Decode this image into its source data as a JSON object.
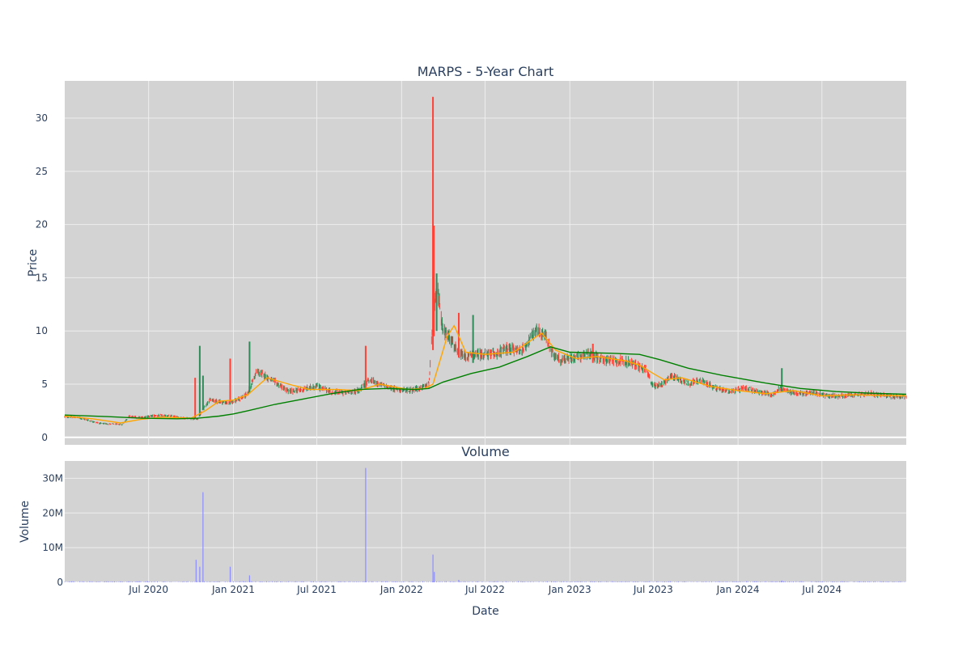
{
  "chart_data": [
    {
      "type": "candlestick",
      "title": "MARPS - 5-Year Chart",
      "ylabel": "Price",
      "ylim": [
        -0.7,
        33.5
      ],
      "yticks": [
        0,
        5,
        10,
        15,
        20,
        25,
        30
      ],
      "x_range": [
        "2020-01-01",
        "2024-12-31"
      ],
      "grid": true,
      "colors": {
        "increasing": "#2e8b57",
        "decreasing": "#ff4136",
        "ma_short": "#ffa500",
        "ma_long": "#008000",
        "plot_bg": "#d3d3d3",
        "grid": "#eeeeee"
      },
      "price_path": [
        [
          "2020-01-01",
          1.95
        ],
        [
          "2020-02-01",
          1.85
        ],
        [
          "2020-03-01",
          1.5
        ],
        [
          "2020-03-20",
          1.3
        ],
        [
          "2020-04-15",
          1.25
        ],
        [
          "2020-05-05",
          1.2
        ],
        [
          "2020-05-20",
          2.0
        ],
        [
          "2020-06-10",
          1.85
        ],
        [
          "2020-07-15",
          2.05
        ],
        [
          "2020-08-15",
          2.0
        ],
        [
          "2020-09-20",
          1.8
        ],
        [
          "2020-10-15",
          1.7
        ],
        [
          "2020-10-25",
          2.5
        ],
        [
          "2020-11-10",
          3.5
        ],
        [
          "2020-12-01",
          3.4
        ],
        [
          "2020-12-20",
          3.2
        ],
        [
          "2021-01-15",
          3.6
        ],
        [
          "2021-02-01",
          4.1
        ],
        [
          "2021-02-20",
          6.2
        ],
        [
          "2021-03-10",
          5.8
        ],
        [
          "2021-04-01",
          5.2
        ],
        [
          "2021-05-01",
          4.3
        ],
        [
          "2021-06-01",
          4.5
        ],
        [
          "2021-07-01",
          4.8
        ],
        [
          "2021-08-01",
          4.3
        ],
        [
          "2021-09-01",
          4.2
        ],
        [
          "2021-10-01",
          4.4
        ],
        [
          "2021-10-20",
          5.4
        ],
        [
          "2021-11-15",
          5.0
        ],
        [
          "2021-12-10",
          4.6
        ],
        [
          "2022-01-10",
          4.4
        ],
        [
          "2022-02-10",
          4.6
        ],
        [
          "2022-03-01",
          5.0
        ],
        [
          "2022-03-12",
          12.0
        ],
        [
          "2022-03-20",
          14.0
        ],
        [
          "2022-04-01",
          10.0
        ],
        [
          "2022-04-15",
          9.5
        ],
        [
          "2022-05-01",
          8.0
        ],
        [
          "2022-05-20",
          7.5
        ],
        [
          "2022-06-10",
          7.8
        ],
        [
          "2022-07-15",
          7.8
        ],
        [
          "2022-08-20",
          8.3
        ],
        [
          "2022-09-20",
          8.2
        ],
        [
          "2022-10-20",
          10.0
        ],
        [
          "2022-11-10",
          9.5
        ],
        [
          "2022-11-25",
          7.8
        ],
        [
          "2022-12-15",
          7.2
        ],
        [
          "2023-01-15",
          7.6
        ],
        [
          "2023-02-15",
          7.8
        ],
        [
          "2023-03-15",
          7.3
        ],
        [
          "2023-04-15",
          7.2
        ],
        [
          "2023-05-15",
          7.0
        ],
        [
          "2023-06-15",
          6.4
        ],
        [
          "2023-07-01",
          4.8
        ],
        [
          "2023-07-20",
          5.0
        ],
        [
          "2023-08-10",
          5.8
        ],
        [
          "2023-09-15",
          5.1
        ],
        [
          "2023-10-15",
          5.3
        ],
        [
          "2023-11-15",
          4.6
        ],
        [
          "2023-12-15",
          4.3
        ],
        [
          "2024-01-15",
          4.6
        ],
        [
          "2024-02-15",
          4.3
        ],
        [
          "2024-03-15",
          4.0
        ],
        [
          "2024-04-01",
          4.6
        ],
        [
          "2024-04-20",
          4.3
        ],
        [
          "2024-05-15",
          4.1
        ],
        [
          "2024-06-15",
          4.2
        ],
        [
          "2024-07-15",
          3.9
        ],
        [
          "2024-08-15",
          3.9
        ],
        [
          "2024-09-15",
          4.0
        ],
        [
          "2024-10-15",
          4.1
        ],
        [
          "2024-11-15",
          3.95
        ],
        [
          "2024-12-31",
          3.8
        ]
      ],
      "spikes": [
        {
          "date": "2020-10-20",
          "low": 2.0,
          "high": 8.6
        },
        {
          "date": "2020-10-10",
          "low": 1.8,
          "high": 5.6
        },
        {
          "date": "2020-10-27",
          "low": 2.6,
          "high": 5.8
        },
        {
          "date": "2020-12-25",
          "low": 3.3,
          "high": 7.4
        },
        {
          "date": "2021-02-05",
          "low": 4.2,
          "high": 9.0
        },
        {
          "date": "2021-10-15",
          "low": 4.5,
          "high": 8.6
        },
        {
          "date": "2022-03-10",
          "low": 8.2,
          "high": 32.0
        },
        {
          "date": "2022-03-12",
          "low": 9.5,
          "high": 19.9
        },
        {
          "date": "2022-03-18",
          "low": 10.0,
          "high": 15.4
        },
        {
          "date": "2022-05-05",
          "low": 7.5,
          "high": 11.7
        },
        {
          "date": "2022-06-05",
          "low": 7.0,
          "high": 11.5
        },
        {
          "date": "2023-02-20",
          "low": 7.0,
          "high": 8.8
        },
        {
          "date": "2024-04-05",
          "low": 4.3,
          "high": 6.5
        }
      ],
      "ma_short": [
        [
          "2020-01-01",
          2.0
        ],
        [
          "2020-03-01",
          1.75
        ],
        [
          "2020-05-01",
          1.35
        ],
        [
          "2020-06-15",
          1.7
        ],
        [
          "2020-08-01",
          1.9
        ],
        [
          "2020-10-01",
          1.8
        ],
        [
          "2020-11-01",
          2.5
        ],
        [
          "2020-12-01",
          3.4
        ],
        [
          "2021-01-01",
          3.5
        ],
        [
          "2021-02-01",
          4.0
        ],
        [
          "2021-03-15",
          5.6
        ],
        [
          "2021-05-01",
          5.0
        ],
        [
          "2021-06-15",
          4.5
        ],
        [
          "2021-08-15",
          4.5
        ],
        [
          "2021-10-01",
          4.4
        ],
        [
          "2021-11-15",
          5.0
        ],
        [
          "2022-01-15",
          4.5
        ],
        [
          "2022-02-20",
          4.6
        ],
        [
          "2022-03-10",
          5.0
        ],
        [
          "2022-04-10",
          9.5
        ],
        [
          "2022-04-25",
          10.5
        ],
        [
          "2022-05-20",
          8.0
        ],
        [
          "2022-07-01",
          7.8
        ],
        [
          "2022-09-01",
          8.0
        ],
        [
          "2022-11-01",
          9.8
        ],
        [
          "2022-12-01",
          8.2
        ],
        [
          "2023-01-15",
          7.4
        ],
        [
          "2023-03-01",
          7.6
        ],
        [
          "2023-05-01",
          7.2
        ],
        [
          "2023-06-01",
          6.8
        ],
        [
          "2023-07-01",
          6.0
        ],
        [
          "2023-07-25",
          5.4
        ],
        [
          "2023-09-01",
          5.6
        ],
        [
          "2023-11-01",
          4.8
        ],
        [
          "2024-01-01",
          4.4
        ],
        [
          "2024-03-01",
          4.1
        ],
        [
          "2024-05-01",
          4.4
        ],
        [
          "2024-07-01",
          3.9
        ],
        [
          "2024-09-01",
          4.0
        ],
        [
          "2024-12-31",
          3.9
        ]
      ],
      "ma_long": [
        [
          "2020-01-01",
          2.1
        ],
        [
          "2020-04-01",
          1.95
        ],
        [
          "2020-06-15",
          1.8
        ],
        [
          "2020-09-01",
          1.75
        ],
        [
          "2020-10-15",
          1.8
        ],
        [
          "2020-12-01",
          2.0
        ],
        [
          "2021-01-01",
          2.2
        ],
        [
          "2021-02-01",
          2.5
        ],
        [
          "2021-04-01",
          3.1
        ],
        [
          "2021-06-01",
          3.6
        ],
        [
          "2021-08-01",
          4.1
        ],
        [
          "2021-10-01",
          4.5
        ],
        [
          "2021-12-01",
          4.6
        ],
        [
          "2022-02-01",
          4.5
        ],
        [
          "2022-03-01",
          4.6
        ],
        [
          "2022-04-01",
          5.2
        ],
        [
          "2022-06-01",
          6.0
        ],
        [
          "2022-08-01",
          6.6
        ],
        [
          "2022-10-01",
          7.6
        ],
        [
          "2022-11-20",
          8.5
        ],
        [
          "2023-01-01",
          8.0
        ],
        [
          "2023-04-01",
          7.9
        ],
        [
          "2023-06-01",
          7.8
        ],
        [
          "2023-07-15",
          7.3
        ],
        [
          "2023-09-15",
          6.5
        ],
        [
          "2023-12-01",
          5.8
        ],
        [
          "2024-03-01",
          5.1
        ],
        [
          "2024-05-15",
          4.6
        ],
        [
          "2024-08-01",
          4.3
        ],
        [
          "2024-10-15",
          4.15
        ],
        [
          "2024-12-31",
          4.05
        ]
      ]
    },
    {
      "type": "bar",
      "title": "Volume",
      "ylabel": "Volume",
      "xlabel": "Date",
      "ylim": [
        0,
        35000000
      ],
      "yticks": [
        0,
        10000000,
        20000000,
        30000000
      ],
      "ytick_labels": [
        "0",
        "10M",
        "20M",
        "30M"
      ],
      "x_ticks": [
        "2020-07-01",
        "2021-01-01",
        "2021-07-01",
        "2022-01-01",
        "2022-07-01",
        "2023-01-01",
        "2023-07-01",
        "2024-01-01",
        "2024-07-01"
      ],
      "x_tick_labels": [
        "Jul 2020",
        "Jan 2021",
        "Jul 2021",
        "Jan 2022",
        "Jul 2022",
        "Jan 2023",
        "Jul 2023",
        "Jan 2024",
        "Jul 2024"
      ],
      "color": "#8c8cff",
      "spikes": [
        {
          "date": "2020-10-12",
          "value": 6500000
        },
        {
          "date": "2020-10-20",
          "value": 4500000
        },
        {
          "date": "2020-10-27",
          "value": 26000000
        },
        {
          "date": "2020-12-25",
          "value": 4500000
        },
        {
          "date": "2021-02-05",
          "value": 2000000
        },
        {
          "date": "2021-10-15",
          "value": 33000000
        },
        {
          "date": "2022-03-10",
          "value": 8000000
        },
        {
          "date": "2022-03-13",
          "value": 3000000
        },
        {
          "date": "2022-05-05",
          "value": 700000
        },
        {
          "date": "2024-04-05",
          "value": 500000
        }
      ]
    }
  ]
}
